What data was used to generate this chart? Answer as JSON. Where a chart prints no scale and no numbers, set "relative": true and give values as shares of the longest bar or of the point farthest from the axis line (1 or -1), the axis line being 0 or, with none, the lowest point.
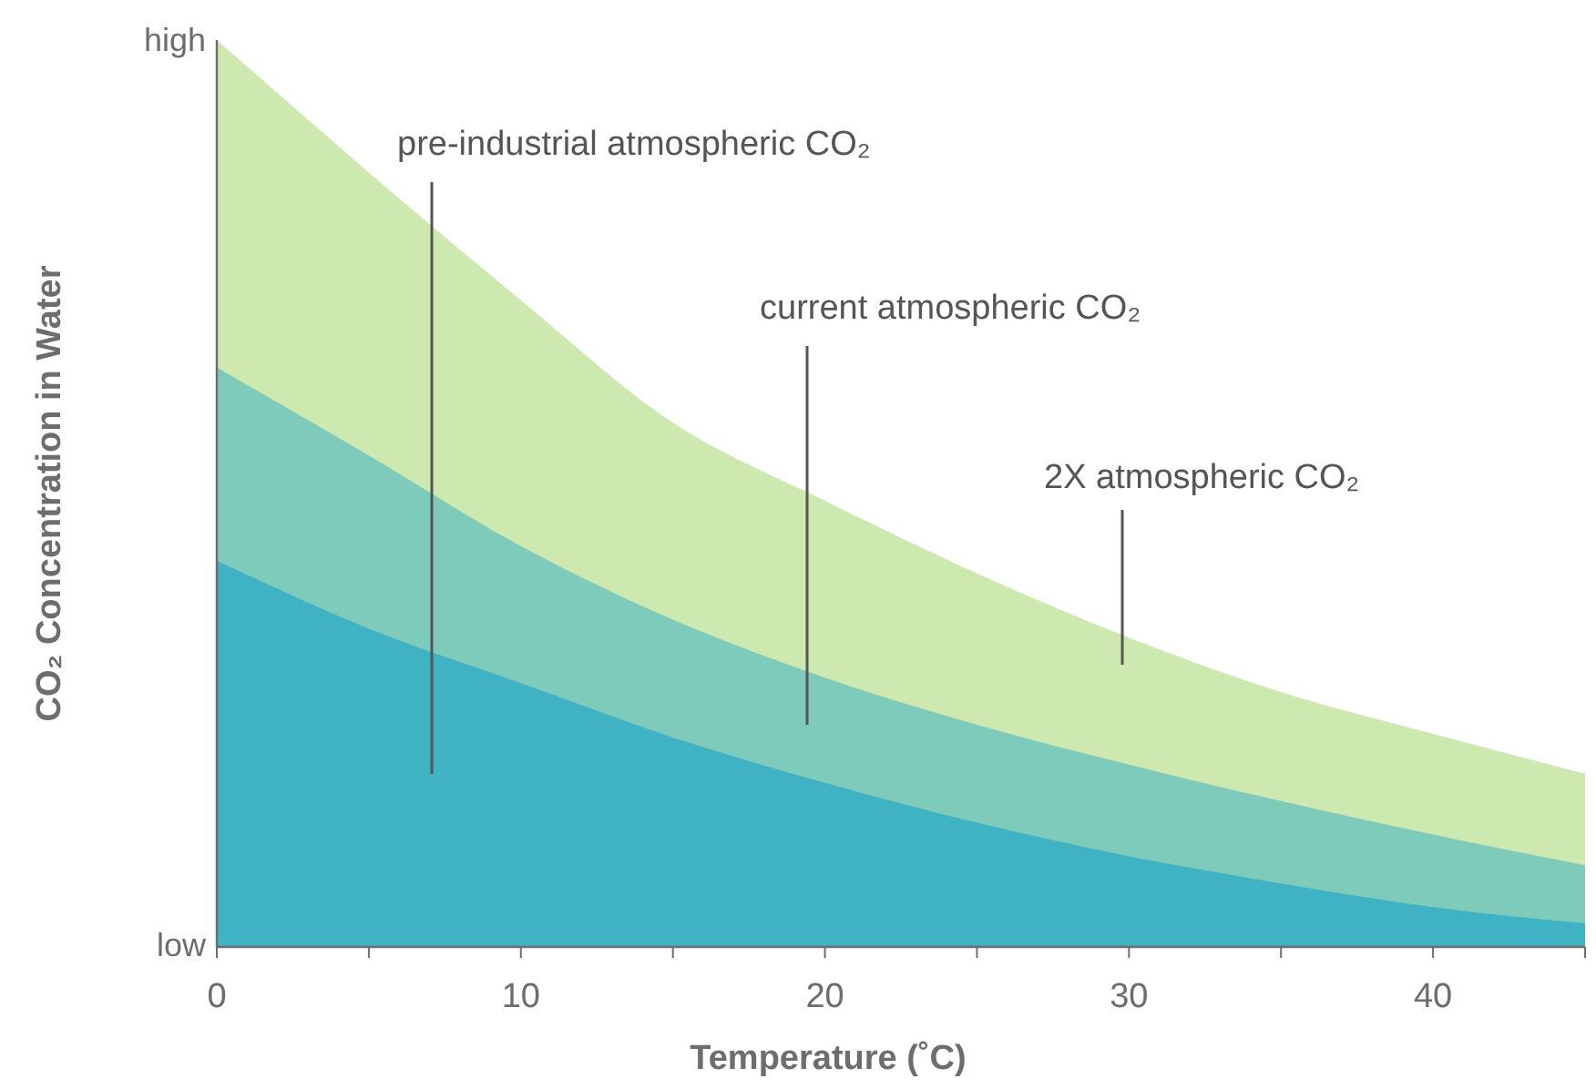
{
  "chart_data": {
    "type": "area",
    "relative": true,
    "xlabel": "Temperature (˚C)",
    "ylabel": "CO₂ Concentration in Water",
    "x": [
      0,
      5,
      10,
      15,
      20,
      25,
      30,
      35,
      40,
      45
    ],
    "xlim": [
      0,
      45
    ],
    "xticks": [
      0,
      {
        "value": 5,
        "label": null
      },
      10,
      {
        "value": 15,
        "label": null
      },
      20,
      {
        "value": 25,
        "label": null
      },
      30,
      {
        "value": 35,
        "label": null
      },
      40,
      {
        "value": 45,
        "label": null
      }
    ],
    "series": [
      {
        "color": "#cde9b0",
        "values": [
          1.0,
          0.854,
          0.713,
          0.578,
          0.492,
          0.412,
          0.341,
          0.281,
          0.235,
          0.191
        ]
      },
      {
        "color": "#7ecbbb",
        "values": [
          0.639,
          0.542,
          0.442,
          0.361,
          0.297,
          0.245,
          0.201,
          0.161,
          0.124,
          0.09
        ]
      },
      {
        "color": "#3fb2c3",
        "values": [
          0.426,
          0.351,
          0.291,
          0.231,
          0.181,
          0.137,
          0.1,
          0.07,
          0.044,
          0.026
        ]
      }
    ],
    "annotations": [
      "pre-industrial atmospheric CO₂",
      "current atmospheric CO₂",
      "2X atmospheric CO₂",
      "low",
      "high"
    ]
  }
}
